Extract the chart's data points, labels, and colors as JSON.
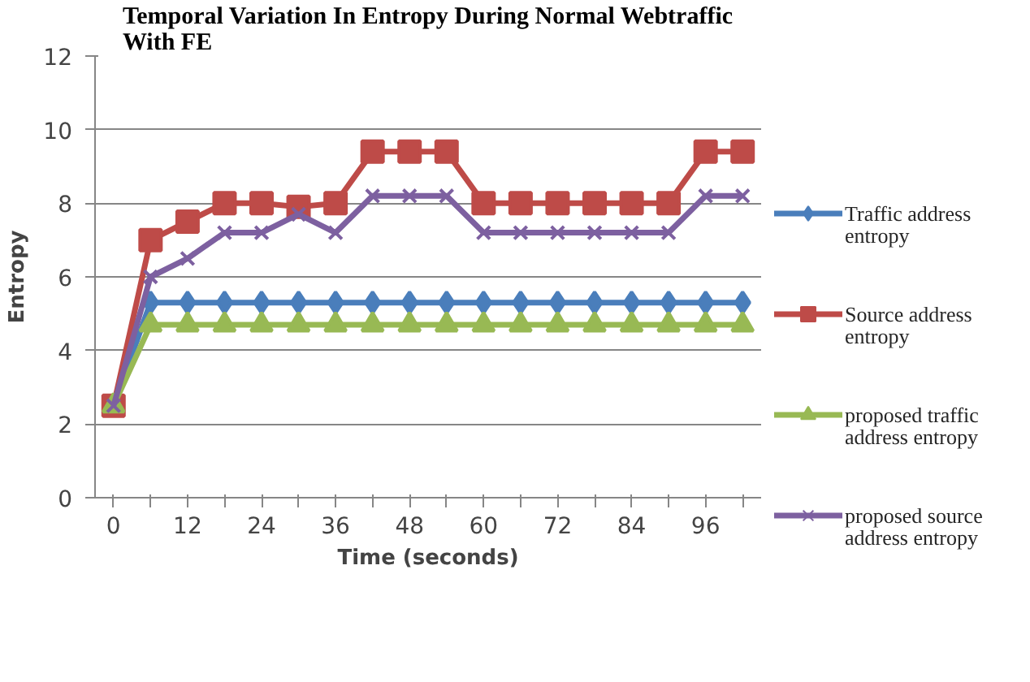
{
  "chart_data": {
    "type": "line",
    "title": "Temporal Variation In Entropy During Normal Webtraffic With FE",
    "xlabel": "Time (seconds)",
    "ylabel": "Entropy",
    "categories": [
      "0",
      null,
      "12",
      null,
      "24",
      null,
      "36",
      null,
      "48",
      null,
      "60",
      null,
      "72",
      null,
      "84",
      null,
      "96",
      null
    ],
    "series": [
      {
        "name": "Traffic address entropy",
        "color": "#4a7ebb",
        "marker": "diamond",
        "values": [
          2.5,
          5.3,
          5.3,
          5.3,
          5.3,
          5.3,
          5.3,
          5.3,
          5.3,
          5.3,
          5.3,
          5.3,
          5.3,
          5.3,
          5.3,
          5.3,
          5.3,
          5.3
        ]
      },
      {
        "name": "Source address entropy",
        "color": "#be4b48",
        "marker": "square",
        "values": [
          2.5,
          7.0,
          7.5,
          8.0,
          8.0,
          7.9,
          8.0,
          9.4,
          9.4,
          9.4,
          8.0,
          8.0,
          8.0,
          8.0,
          8.0,
          8.0,
          9.4,
          9.4
        ]
      },
      {
        "name": "proposed traffic address entropy",
        "color": "#98b954",
        "marker": "triangle",
        "values": [
          2.5,
          4.7,
          4.7,
          4.7,
          4.7,
          4.7,
          4.7,
          4.7,
          4.7,
          4.7,
          4.7,
          4.7,
          4.7,
          4.7,
          4.7,
          4.7,
          4.7,
          4.7
        ]
      },
      {
        "name": "proposed source address entropy",
        "color": "#7d60a0",
        "marker": "cross",
        "values": [
          2.5,
          6.0,
          6.5,
          7.2,
          7.2,
          7.7,
          7.2,
          8.2,
          8.2,
          8.2,
          7.2,
          7.2,
          7.2,
          7.2,
          7.2,
          7.2,
          8.2,
          8.2
        ]
      }
    ],
    "ylim": [
      0,
      12
    ],
    "yticks": [
      0,
      2,
      4,
      6,
      8,
      10,
      12
    ],
    "grid": "y",
    "legend": "right"
  }
}
